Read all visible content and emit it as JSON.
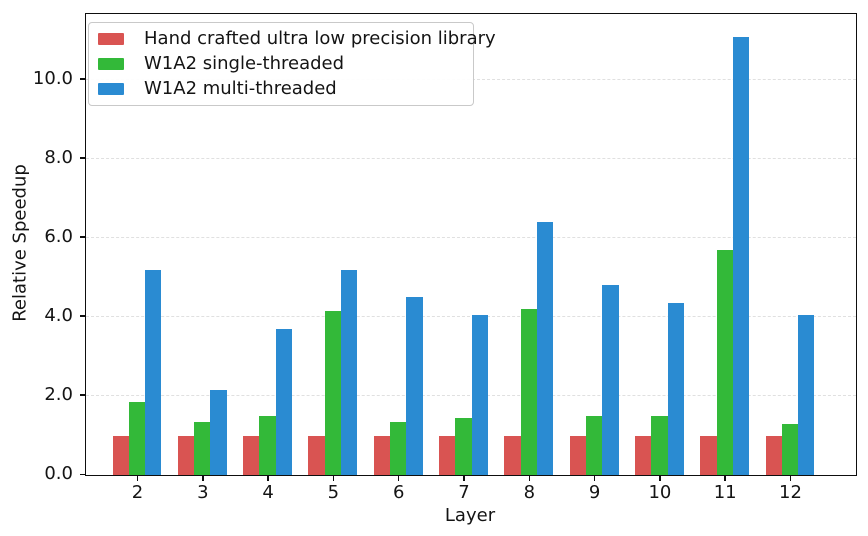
{
  "chart_data": {
    "type": "bar",
    "title": "",
    "xlabel": "Layer",
    "ylabel": "Relative Speedup",
    "categories": [
      "2",
      "3",
      "4",
      "5",
      "6",
      "7",
      "8",
      "9",
      "10",
      "11",
      "12"
    ],
    "series": [
      {
        "name": "Hand crafted ultra low precision library",
        "color": "#d95452",
        "values": [
          1.0,
          1.0,
          1.0,
          1.0,
          1.0,
          1.0,
          1.0,
          1.0,
          1.0,
          1.0,
          1.0
        ]
      },
      {
        "name": "W1A2 single-threaded",
        "color": "#33b939",
        "values": [
          1.85,
          1.35,
          1.5,
          4.15,
          1.35,
          1.45,
          4.2,
          1.5,
          1.5,
          5.7,
          1.3
        ]
      },
      {
        "name": "W1A2 multi-threaded",
        "color": "#2a8bd2",
        "values": [
          5.2,
          2.15,
          3.7,
          5.2,
          4.5,
          4.05,
          6.4,
          4.8,
          4.35,
          11.1,
          4.05
        ]
      }
    ],
    "ylim": [
      0,
      11.67
    ],
    "yticks": [
      0,
      2,
      4,
      6,
      8,
      10
    ],
    "ytick_labels": [
      "0.0",
      "2.0",
      "4.0",
      "6.0",
      "8.0",
      "10.0"
    ],
    "grid": "horizontal-dashed",
    "grid_color": "#e0e0e0",
    "legend_position": "upper-left"
  }
}
